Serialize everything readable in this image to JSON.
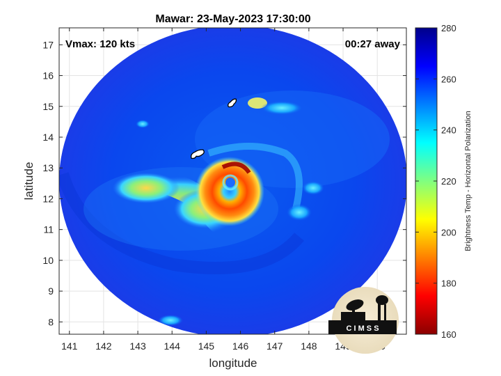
{
  "title": "Mawar: 23-May-2023 17:30:00",
  "annotations": {
    "vmax": "Vmax: 120 kts",
    "away": "00:27 away"
  },
  "axes": {
    "xlabel": "longitude",
    "ylabel": "latitude",
    "xlim": [
      140.7,
      150.85
    ],
    "ylim": [
      7.6,
      17.55
    ],
    "xticks": [
      "141",
      "142",
      "143",
      "144",
      "145",
      "146",
      "147",
      "148",
      "149",
      "150"
    ],
    "yticks": [
      "8",
      "9",
      "10",
      "11",
      "12",
      "13",
      "14",
      "15",
      "16",
      "17"
    ],
    "grid": true
  },
  "colorbar": {
    "label": "Brightness Temp - Horizontal Polarization",
    "range": [
      160,
      280
    ],
    "ticks": [
      "280",
      "260",
      "240",
      "220",
      "200",
      "180",
      "160"
    ],
    "colors": [
      "#8b0000",
      "#ff0000",
      "#ff8000",
      "#ffff00",
      "#80ff80",
      "#00ffff",
      "#0080ff",
      "#0000ff",
      "#00008b"
    ]
  },
  "logo": {
    "text": "C I M S S"
  },
  "chart_data": {
    "type": "heatmap",
    "title": "Mawar: 23-May-2023 17:30:00",
    "xlabel": "longitude",
    "ylabel": "latitude",
    "xlim": [
      140.7,
      150.85
    ],
    "ylim": [
      7.6,
      17.55
    ],
    "colorbar_label": "Brightness Temp - Horizontal Polarization",
    "value_range": [
      160,
      280
    ],
    "swath_center": [
      145.8,
      12.5
    ],
    "storm_center": [
      146.0,
      12.6
    ],
    "background_value": 265,
    "features": [
      {
        "name": "eye",
        "lon": 146.0,
        "lat": 12.6,
        "value": 240
      },
      {
        "name": "eyewall",
        "lon": 146.0,
        "lat": 12.5,
        "value": 190
      },
      {
        "name": "spiral band",
        "lon": 143.5,
        "lat": 11.5,
        "value": 215
      }
    ],
    "islands": [
      {
        "lon": 144.75,
        "lat": 13.45
      },
      {
        "lon": 145.75,
        "lat": 15.1
      }
    ]
  }
}
